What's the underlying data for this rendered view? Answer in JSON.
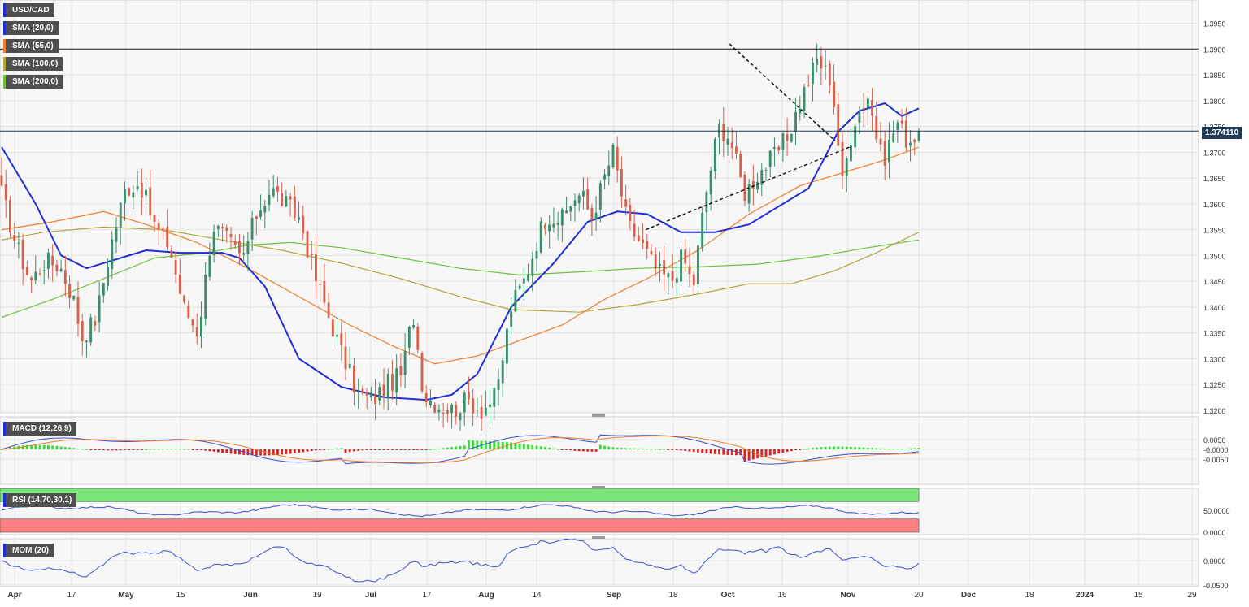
{
  "colors": {
    "sma20": "#1f2fd4",
    "sma55": "#f07c2a",
    "sma100": "#b3a43a",
    "sma200": "#6cc23a",
    "bull": "#3a8e6a",
    "bear": "#d9614b",
    "macd_pos": "#33dd33",
    "macd_neg": "#dd2222",
    "rsi_over": "#7be77b",
    "rsi_under": "#ff8080",
    "osc_line": "#3a4fd0",
    "signal_line": "#f07c2a",
    "price_line": "#203a55",
    "grid": "#e4e4e4",
    "plot_bg": "#f7f7f7"
  },
  "legends": {
    "symbol": "USD/CAD",
    "sma20": "SMA (20,0)",
    "sma55": "SMA (55,0)",
    "sma100": "SMA (100,0)",
    "sma200": "SMA (200,0)",
    "macd": "MACD (12,26,9)",
    "rsi": "RSI (14,70,30,1)",
    "mom": "MOM (20)"
  },
  "current_price_label": "1.374110",
  "chart_data": {
    "type": "candlestick",
    "symbol": "USD/CAD",
    "current_price": 1.37411,
    "resistance_level": 1.39,
    "price_axis": {
      "range": [
        1.3195,
        1.3995
      ],
      "ticks": [
        "1.3950",
        "1.3900",
        "1.3850",
        "1.3800",
        "1.3750",
        "1.3700",
        "1.3650",
        "1.3600",
        "1.3550",
        "1.3500",
        "1.3450",
        "1.3400",
        "1.3350",
        "1.3300",
        "1.3250",
        "1.3200"
      ]
    },
    "macd_axis": {
      "ticks": [
        "0.0050",
        "-0.0000",
        "-0.0050"
      ]
    },
    "rsi_axis": {
      "ticks": [
        "50.0000",
        "0.0000"
      ],
      "overbought": 70,
      "oversold": 30
    },
    "mom_axis": {
      "ticks": [
        "0.0000",
        "-0.0500"
      ]
    },
    "x_ticks": [
      "Apr",
      "17",
      "May",
      "15",
      "Jun",
      "19",
      "Jul",
      "17",
      "Aug",
      "14",
      "Sep",
      "18",
      "Oct",
      "16",
      "Nov",
      "20",
      "Dec",
      "18",
      "2024",
      "15",
      "29"
    ],
    "sma": {
      "sma20": [
        [
          0,
          1.371
        ],
        [
          8,
          1.36
        ],
        [
          14,
          1.35
        ],
        [
          20,
          1.3475
        ],
        [
          28,
          1.3495
        ],
        [
          34,
          1.351
        ],
        [
          42,
          1.3505
        ],
        [
          52,
          1.3505
        ],
        [
          56,
          1.3495
        ],
        [
          62,
          1.344
        ],
        [
          70,
          1.33
        ],
        [
          80,
          1.3245
        ],
        [
          90,
          1.3225
        ],
        [
          100,
          1.322
        ],
        [
          106,
          1.323
        ],
        [
          112,
          1.327
        ],
        [
          120,
          1.34
        ],
        [
          130,
          1.3485
        ],
        [
          138,
          1.3565
        ],
        [
          145,
          1.3585
        ],
        [
          152,
          1.358
        ],
        [
          160,
          1.3545
        ],
        [
          168,
          1.3545
        ],
        [
          176,
          1.356
        ],
        [
          182,
          1.359
        ],
        [
          190,
          1.363
        ],
        [
          197,
          1.374
        ],
        [
          202,
          1.378
        ],
        [
          208,
          1.3795
        ],
        [
          212,
          1.377
        ],
        [
          216,
          1.3785
        ]
      ],
      "sma55": [
        [
          0,
          1.355
        ],
        [
          12,
          1.3565
        ],
        [
          24,
          1.3585
        ],
        [
          34,
          1.356
        ],
        [
          46,
          1.3525
        ],
        [
          58,
          1.3475
        ],
        [
          70,
          1.342
        ],
        [
          82,
          1.3365
        ],
        [
          92,
          1.3325
        ],
        [
          102,
          1.329
        ],
        [
          112,
          1.3305
        ],
        [
          122,
          1.3335
        ],
        [
          132,
          1.3365
        ],
        [
          142,
          1.3415
        ],
        [
          152,
          1.3455
        ],
        [
          164,
          1.351
        ],
        [
          176,
          1.358
        ],
        [
          188,
          1.3635
        ],
        [
          200,
          1.3665
        ],
        [
          208,
          1.3685
        ],
        [
          216,
          1.371
        ]
      ],
      "sma100": [
        [
          0,
          1.353
        ],
        [
          10,
          1.3545
        ],
        [
          24,
          1.3555
        ],
        [
          38,
          1.355
        ],
        [
          52,
          1.353
        ],
        [
          66,
          1.351
        ],
        [
          80,
          1.3485
        ],
        [
          94,
          1.3455
        ],
        [
          108,
          1.342
        ],
        [
          120,
          1.3395
        ],
        [
          136,
          1.339
        ],
        [
          150,
          1.3405
        ],
        [
          164,
          1.3425
        ],
        [
          176,
          1.3445
        ],
        [
          186,
          1.3445
        ],
        [
          196,
          1.347
        ],
        [
          206,
          1.3505
        ],
        [
          216,
          1.3545
        ]
      ],
      "sma200": [
        [
          0,
          1.338
        ],
        [
          12,
          1.3415
        ],
        [
          24,
          1.3455
        ],
        [
          36,
          1.3495
        ],
        [
          48,
          1.3505
        ],
        [
          58,
          1.352
        ],
        [
          68,
          1.3525
        ],
        [
          80,
          1.3515
        ],
        [
          94,
          1.3495
        ],
        [
          108,
          1.3475
        ],
        [
          122,
          1.3462
        ],
        [
          136,
          1.3468
        ],
        [
          150,
          1.3475
        ],
        [
          164,
          1.3478
        ],
        [
          178,
          1.3483
        ],
        [
          192,
          1.3498
        ],
        [
          204,
          1.3515
        ],
        [
          216,
          1.353
        ]
      ]
    },
    "trendlines": {
      "upper": [
        [
          200,
          1.391
        ],
        [
          229,
          1.3722
        ]
      ],
      "lower": [
        [
          177,
          1.355
        ],
        [
          233,
          1.371
        ]
      ]
    }
  }
}
